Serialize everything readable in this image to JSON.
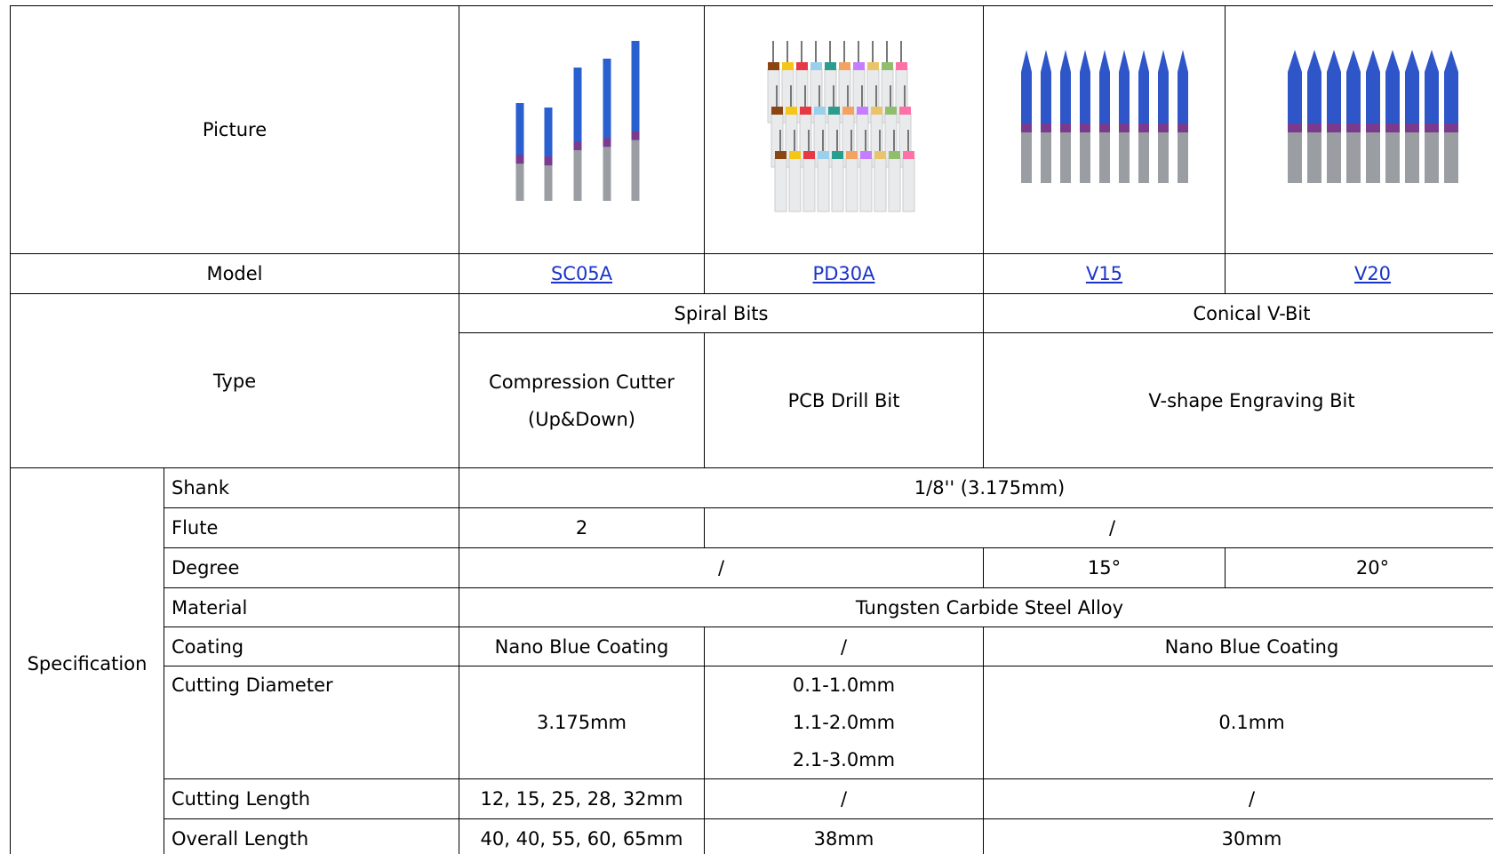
{
  "table": {
    "picture_label": "Picture",
    "model_label": "Model",
    "models": [
      "SC05A",
      "PD30A",
      "V15",
      "V20"
    ],
    "type_label": "Type",
    "type_groups": [
      "Spiral Bits",
      "Conical V-Bit"
    ],
    "types": [
      "Compression Cutter\n(Up&Down)",
      "PCB Drill Bit",
      "V-shape Engraving Bit"
    ],
    "spec_label": "Specification",
    "spec_rows": [
      {
        "label": "Shank",
        "cells": [
          "1/8'' (3.175mm)"
        ]
      },
      {
        "label": "Flute",
        "cells": [
          "2",
          "/"
        ]
      },
      {
        "label": "Degree",
        "cells": [
          "/",
          "15°",
          "20°"
        ]
      },
      {
        "label": "Material",
        "cells": [
          "Tungsten Carbide Steel Alloy"
        ]
      },
      {
        "label": "Coating",
        "cells": [
          "Nano Blue Coating",
          "/",
          "Nano Blue Coating"
        ]
      },
      {
        "label": "Cutting Diameter",
        "cells": [
          "3.175mm",
          "0.1-1.0mm\n1.1-2.0mm\n2.1-3.0mm",
          "0.1mm"
        ]
      },
      {
        "label": "Cutting Length",
        "cells": [
          "12, 15, 25, 28, 32mm",
          "/",
          "/"
        ]
      },
      {
        "label": "Overall Length",
        "cells": [
          "40, 40, 55, 60, 65mm",
          "38mm",
          "30mm"
        ]
      }
    ]
  }
}
